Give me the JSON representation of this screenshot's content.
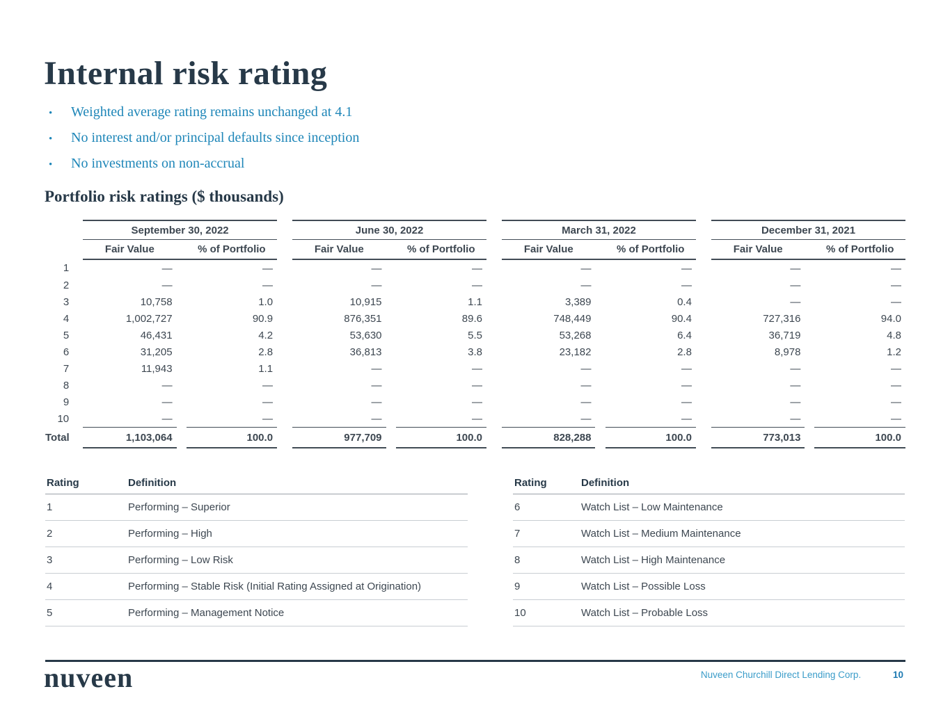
{
  "slide": {
    "title": "Internal risk rating",
    "bullets": [
      "Weighted average rating remains unchanged at 4.1",
      "No interest and/or principal defaults since inception",
      "No investments on non-accrual"
    ],
    "bullet_marker": "•",
    "section_heading": "Portfolio risk ratings ($ thousands)"
  },
  "portfolio_table": {
    "groups": [
      {
        "label": "September 30, 2022"
      },
      {
        "label": "June 30, 2022"
      },
      {
        "label": "March 31, 2022"
      },
      {
        "label": "December 31, 2021"
      }
    ],
    "subheaders": [
      "Fair Value",
      "% of Portfolio"
    ],
    "rows": [
      {
        "rating": "1",
        "cells": [
          "—",
          "—",
          "—",
          "—",
          "—",
          "—",
          "—",
          "—"
        ]
      },
      {
        "rating": "2",
        "cells": [
          "—",
          "—",
          "—",
          "—",
          "—",
          "—",
          "—",
          "—"
        ]
      },
      {
        "rating": "3",
        "cells": [
          "10,758",
          "1.0",
          "10,915",
          "1.1",
          "3,389",
          "0.4",
          "—",
          "—"
        ]
      },
      {
        "rating": "4",
        "cells": [
          "1,002,727",
          "90.9",
          "876,351",
          "89.6",
          "748,449",
          "90.4",
          "727,316",
          "94.0"
        ]
      },
      {
        "rating": "5",
        "cells": [
          "46,431",
          "4.2",
          "53,630",
          "5.5",
          "53,268",
          "6.4",
          "36,719",
          "4.8"
        ]
      },
      {
        "rating": "6",
        "cells": [
          "31,205",
          "2.8",
          "36,813",
          "3.8",
          "23,182",
          "2.8",
          "8,978",
          "1.2"
        ]
      },
      {
        "rating": "7",
        "cells": [
          "11,943",
          "1.1",
          "—",
          "—",
          "—",
          "—",
          "—",
          "—"
        ]
      },
      {
        "rating": "8",
        "cells": [
          "—",
          "—",
          "—",
          "—",
          "—",
          "—",
          "—",
          "—"
        ]
      },
      {
        "rating": "9",
        "cells": [
          "—",
          "—",
          "—",
          "—",
          "—",
          "—",
          "—",
          "—"
        ]
      },
      {
        "rating": "10",
        "cells": [
          "—",
          "—",
          "—",
          "—",
          "—",
          "—",
          "—",
          "—"
        ]
      }
    ],
    "total": {
      "label": "Total",
      "cells": [
        "1,103,064",
        "100.0",
        "977,709",
        "100.0",
        "828,288",
        "100.0",
        "773,013",
        "100.0"
      ]
    }
  },
  "definition_tables": [
    {
      "headers": {
        "rating": "Rating",
        "definition": "Definition"
      },
      "rows": [
        {
          "rating": "1",
          "definition": "Performing – Superior"
        },
        {
          "rating": "2",
          "definition": "Performing – High"
        },
        {
          "rating": "3",
          "definition": "Performing – Low Risk"
        },
        {
          "rating": "4",
          "definition": "Performing – Stable Risk (Initial Rating Assigned at Origination)"
        },
        {
          "rating": "5",
          "definition": "Performing – Management Notice"
        }
      ]
    },
    {
      "headers": {
        "rating": "Rating",
        "definition": "Definition"
      },
      "rows": [
        {
          "rating": "6",
          "definition": "Watch List – Low Maintenance"
        },
        {
          "rating": "7",
          "definition": "Watch List – Medium Maintenance"
        },
        {
          "rating": "8",
          "definition": "Watch List – High Maintenance"
        },
        {
          "rating": "9",
          "definition": "Watch List – Possible Loss"
        },
        {
          "rating": "10",
          "definition": "Watch List – Probable Loss"
        }
      ]
    }
  ],
  "footer": {
    "logo_text": "nuveen",
    "company": "Nuveen Churchill Direct Lending Corp.",
    "page_number": "10"
  },
  "colors": {
    "navy": "#273948",
    "teal": "#1e86b8",
    "table-text": "#3d4751",
    "rule-dark": "#414b55",
    "rule-mid": "#9aa1a8",
    "rule-light": "#c8cdd2",
    "corp-blue": "#3a9cc9",
    "page-blue": "#1d7ab2"
  }
}
